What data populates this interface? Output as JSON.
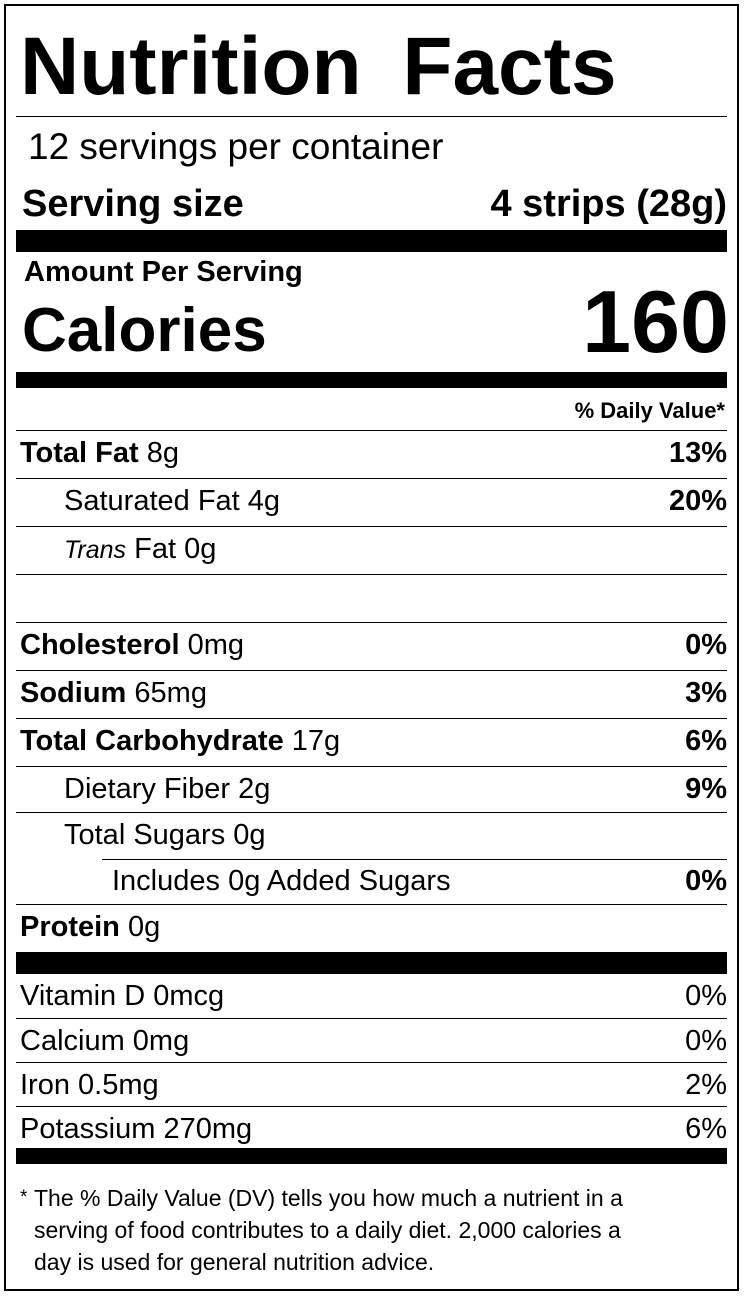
{
  "title": "Nutrition Facts",
  "servings_per_container": "12 servings per container",
  "serving_size_label": "Serving size",
  "serving_size_value": "4 strips (28g)",
  "amount_per_serving": "Amount Per Serving",
  "calories_label": "Calories",
  "calories_value": "160",
  "daily_value_header": "% Daily Value*",
  "nutrients": [
    {
      "name": "Total Fat",
      "amount": "8g",
      "dv": "13%"
    },
    {
      "name": "Saturated Fat",
      "amount": "4g",
      "dv": "20%"
    },
    {
      "name_italic": "Trans",
      "name": "Fat",
      "amount": "0g",
      "dv": ""
    },
    {
      "name": "Cholesterol",
      "amount": "0mg",
      "dv": "0%"
    },
    {
      "name": "Sodium",
      "amount": "65mg",
      "dv": "3%"
    },
    {
      "name": "Total Carbohydrate",
      "amount": "17g",
      "dv": "6%"
    },
    {
      "name": "Dietary Fiber",
      "amount": "2g",
      "dv": "9%"
    },
    {
      "name": "Total Sugars",
      "amount": "0g",
      "dv": ""
    },
    {
      "name": "Includes 0g Added Sugars",
      "amount": "",
      "dv": "0%"
    },
    {
      "name": "Protein",
      "amount": "0g",
      "dv": ""
    }
  ],
  "vitamins": [
    {
      "name": "Vitamin D 0mcg",
      "dv": "0%"
    },
    {
      "name": "Calcium 0mg",
      "dv": "0%"
    },
    {
      "name": "Iron 0.5mg",
      "dv": "2%"
    },
    {
      "name": "Potassium 270mg",
      "dv": "6%"
    }
  ],
  "footnote_star": "*",
  "footnote": "The % Daily Value (DV) tells you how much a nutrient in a\nserving of food contributes to a daily diet. 2,000 calories a\nday is used for general nutrition advice."
}
